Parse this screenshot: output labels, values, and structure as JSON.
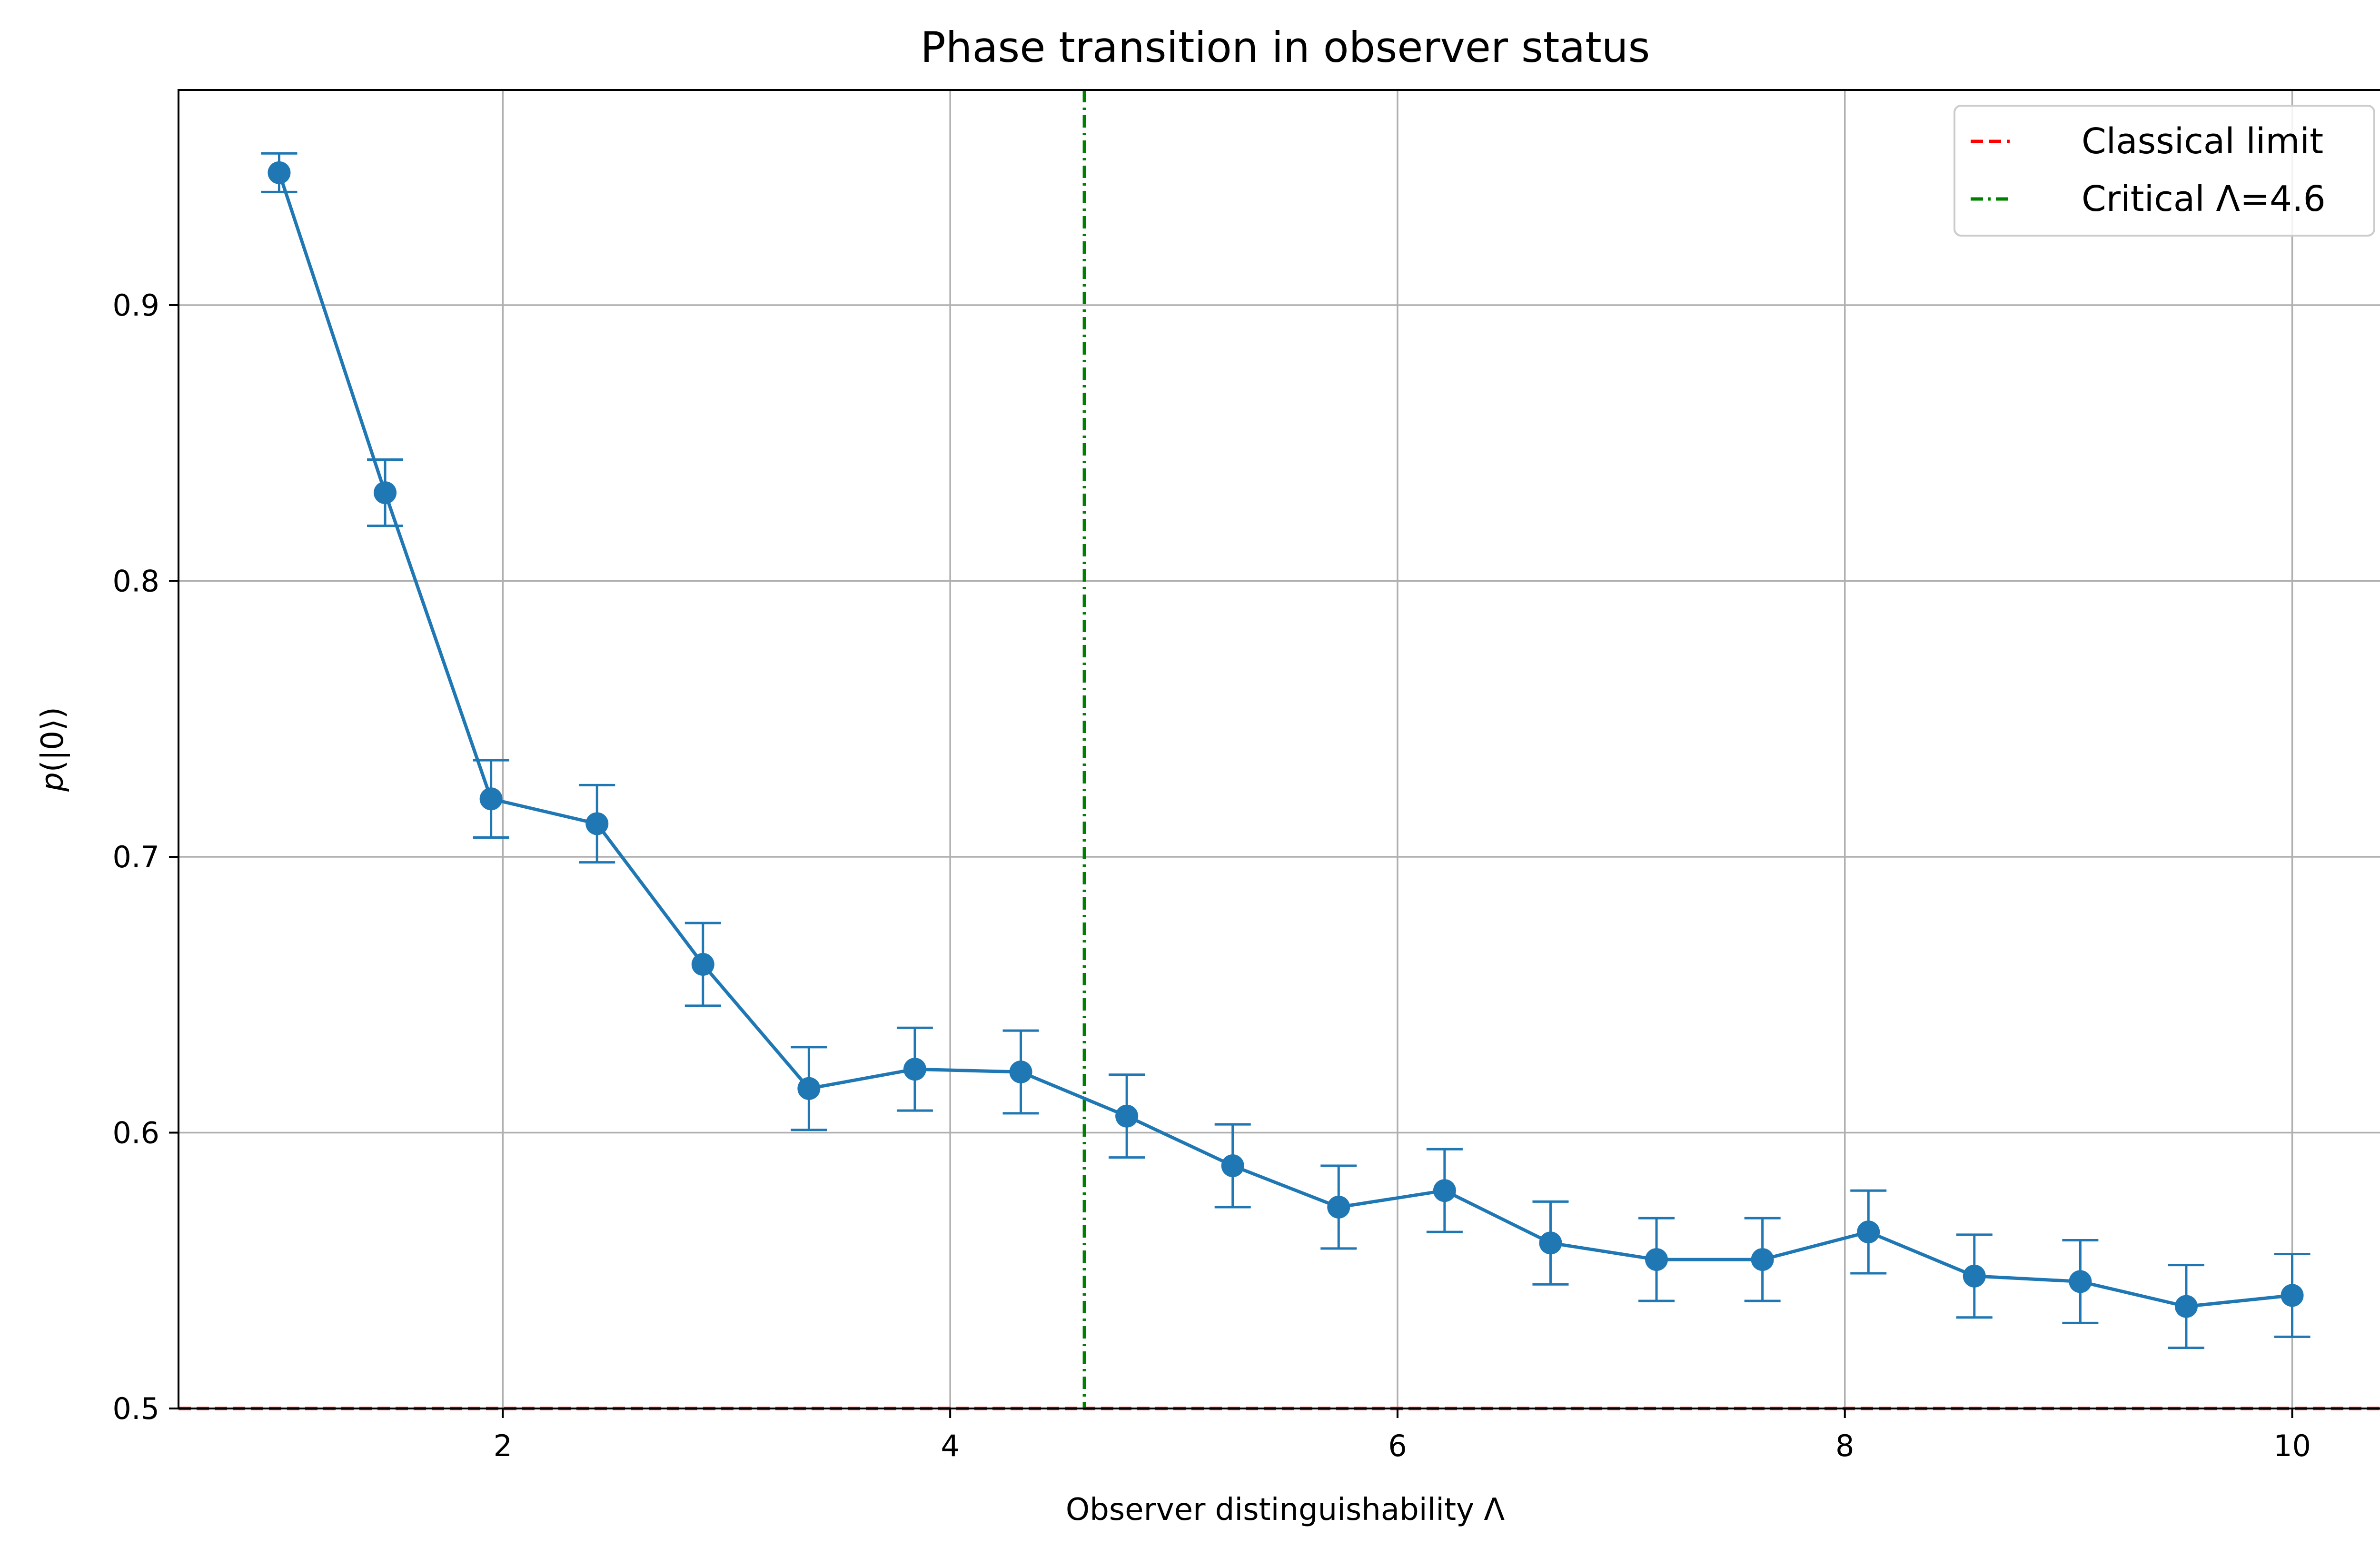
{
  "chart_data": {
    "type": "line",
    "title": "Phase transition in observer status",
    "xlabel": "Observer distinguishability Λ",
    "ylabel_parts": [
      "p",
      "(|0⟩)"
    ],
    "xlim": [
      0.55,
      10.45
    ],
    "ylim": [
      0.5,
      0.978
    ],
    "grid": true,
    "legend_placement": "top-right",
    "xticks": [
      {
        "value": 2,
        "label": "2"
      },
      {
        "value": 4,
        "label": "4"
      },
      {
        "value": 6,
        "label": "6"
      },
      {
        "value": 8,
        "label": "8"
      },
      {
        "value": 10,
        "label": "10"
      }
    ],
    "yticks": [
      {
        "value": 0.5,
        "label": "0.5"
      },
      {
        "value": 0.6,
        "label": "0.6"
      },
      {
        "value": 0.7,
        "label": "0.7"
      },
      {
        "value": 0.8,
        "label": "0.8"
      },
      {
        "value": 0.9,
        "label": "0.9"
      }
    ],
    "series": [
      {
        "color": "#1f77b4",
        "x": [
          1.0,
          1.4737,
          1.9474,
          2.4211,
          2.8947,
          3.3684,
          3.8421,
          4.3158,
          4.7895,
          5.2632,
          5.7368,
          6.2105,
          6.6842,
          7.1579,
          7.6316,
          8.1053,
          8.5789,
          9.0526,
          9.5263,
          10.0
        ],
        "y": [
          0.948,
          0.832,
          0.721,
          0.712,
          0.661,
          0.616,
          0.623,
          0.622,
          0.606,
          0.588,
          0.573,
          0.579,
          0.56,
          0.554,
          0.554,
          0.564,
          0.548,
          0.546,
          0.537,
          0.541
        ],
        "yerr": [
          0.007,
          0.012,
          0.014,
          0.014,
          0.015,
          0.015,
          0.015,
          0.015,
          0.015,
          0.015,
          0.015,
          0.015,
          0.015,
          0.015,
          0.015,
          0.015,
          0.015,
          0.015,
          0.015,
          0.015
        ]
      }
    ],
    "reference_lines": [
      {
        "orientation": "horizontal",
        "value": 0.5,
        "color": "#ff0000",
        "style": "dashed",
        "name": "Classical limit"
      },
      {
        "orientation": "vertical",
        "value": 4.6,
        "color": "#008000",
        "style": "dashdot",
        "name": "Critical Λ=4.6"
      }
    ]
  }
}
